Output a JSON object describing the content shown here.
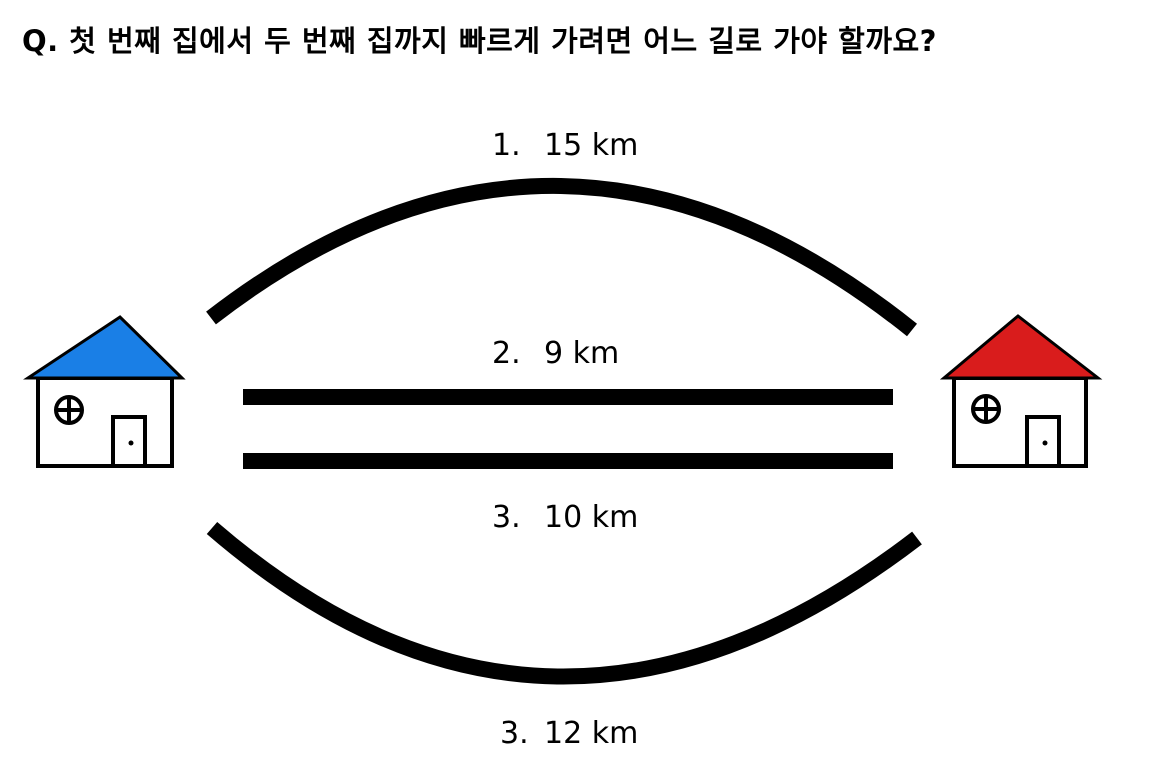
{
  "question": "Q. 첫  번째  집에서 두  번째  집까지 빠르게 가려면 어느 길로 가야 할까요?",
  "routes": [
    {
      "number": "1.",
      "distance": "15 km",
      "km": 15
    },
    {
      "number": "2.",
      "distance": "9 km",
      "km": 9
    },
    {
      "number": "3.",
      "distance": "10 km",
      "km": 10
    },
    {
      "number": "3.",
      "distance": "12 km",
      "km": 12
    }
  ],
  "houses": {
    "first": {
      "roof_color": "#1a7fe6"
    },
    "second": {
      "roof_color": "#d91c1c"
    }
  }
}
